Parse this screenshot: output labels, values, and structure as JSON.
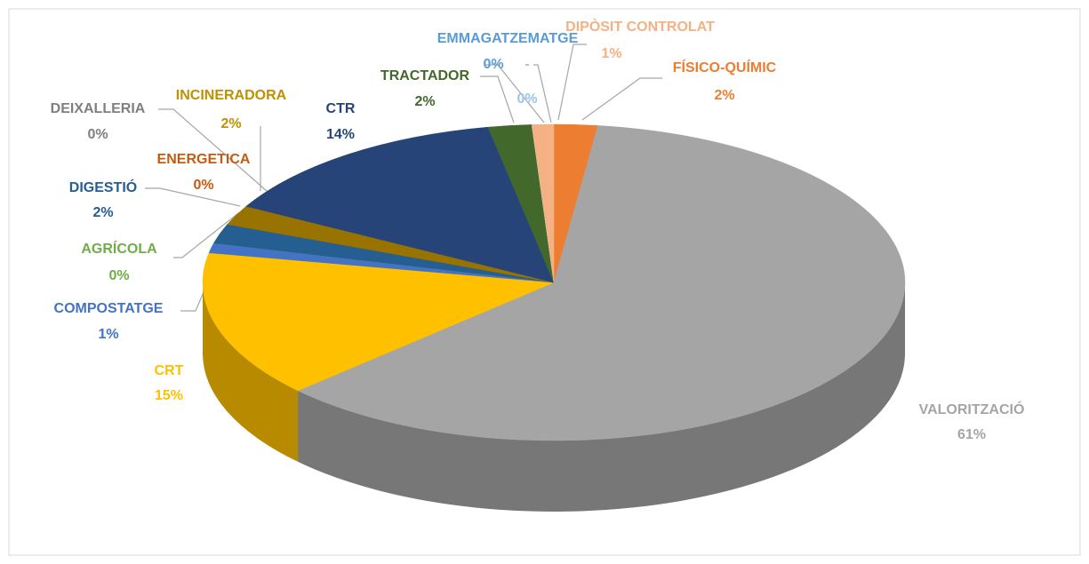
{
  "chart_data": {
    "type": "pie",
    "categories": [
      "FÍSICO-QUÍMIC",
      "VALORITZACIÓ",
      "CRT",
      "COMPOSTATGE",
      "AGRÍCOLA",
      "DIGESTIÓ",
      "ENERGETICA",
      "DEIXALLERIA",
      "INCINERADORA",
      "CTR",
      "TRACTADOR",
      "EMMAGATZEMATGE",
      "-",
      "DIPÒSIT CONTROLAT"
    ],
    "values": [
      2,
      61,
      15,
      1,
      0,
      2,
      0,
      0,
      2,
      14,
      2,
      0,
      0,
      1
    ],
    "value_labels": [
      "2%",
      "61%",
      "15%",
      "1%",
      "0%",
      "2%",
      "0%",
      "0%",
      "2%",
      "14%",
      "2%",
      "0%",
      "0%",
      "1%"
    ],
    "colors": [
      "#ed7d31",
      "#a5a5a5",
      "#ffc000",
      "#4472c4",
      "#70ad47",
      "#255e91",
      "#9e480e",
      "#636363",
      "#997300",
      "#264478",
      "#43682b",
      "#698ed0",
      "#9dc3e6",
      "#f4b183"
    ]
  }
}
